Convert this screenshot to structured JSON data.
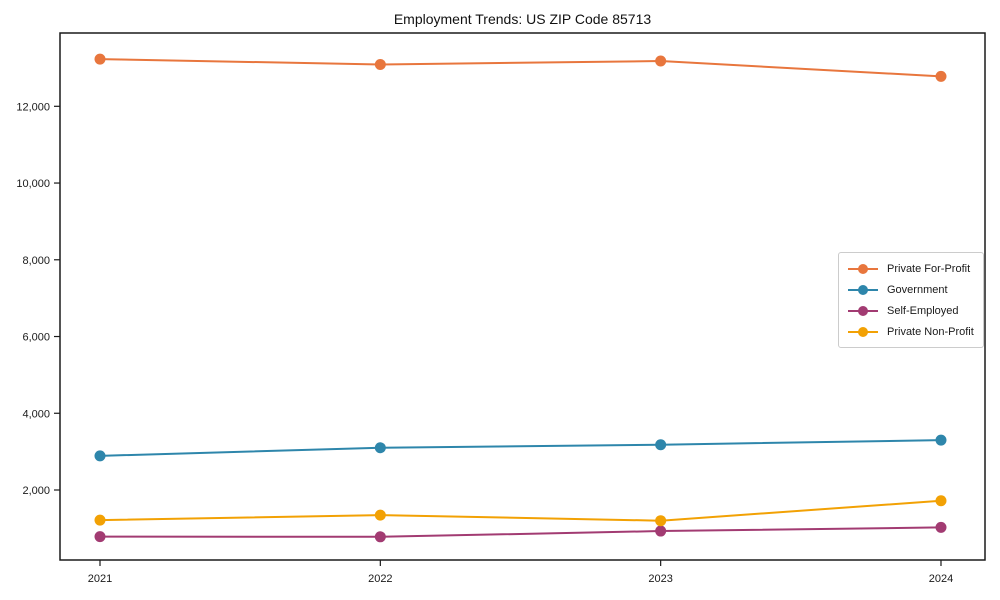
{
  "chart_data": {
    "type": "line",
    "title": "Employment Trends: US ZIP Code 85713",
    "xlabel": "",
    "ylabel": "",
    "x": [
      2021,
      2022,
      2023,
      2024
    ],
    "x_tick_labels": [
      "2021",
      "2022",
      "2023",
      "2024"
    ],
    "y_ticks": [
      2000,
      4000,
      6000,
      8000,
      10000,
      12000
    ],
    "y_tick_labels": [
      "2,000",
      "4,000",
      "6,000",
      "8,000",
      "10,000",
      "12,000"
    ],
    "ylim": [
      175,
      13900
    ],
    "grid": false,
    "legend_position": "center right",
    "series": [
      {
        "name": "Private For-Profit",
        "color": "#E8763D",
        "values": [
          13230,
          13090,
          13180,
          12780
        ]
      },
      {
        "name": "Government",
        "color": "#2E86AB",
        "values": [
          2890,
          3100,
          3180,
          3300
        ]
      },
      {
        "name": "Self-Employed",
        "color": "#A23B72",
        "values": [
          785,
          780,
          930,
          1025
        ]
      },
      {
        "name": "Private Non-Profit",
        "color": "#F2A104",
        "values": [
          1215,
          1345,
          1200,
          1720
        ]
      }
    ]
  }
}
